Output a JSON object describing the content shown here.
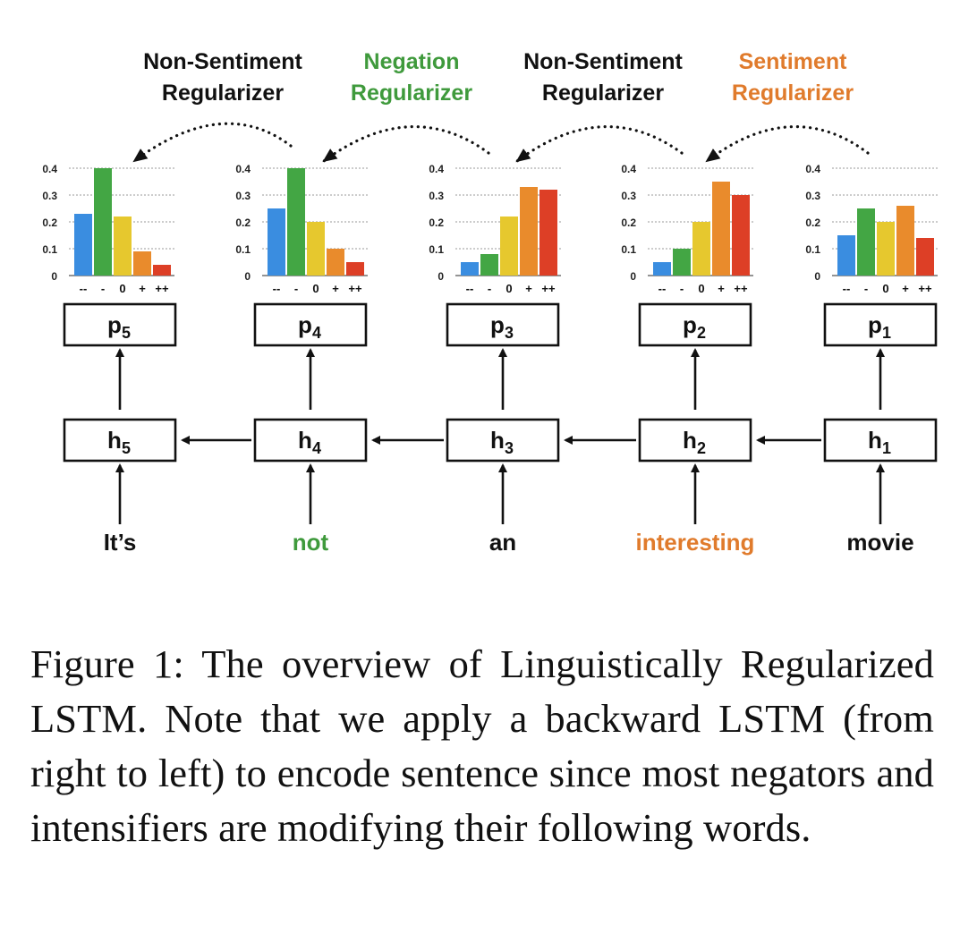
{
  "regularizers": [
    {
      "line1": "Non-Sentiment",
      "line2": "Regularizer",
      "color": "#111111"
    },
    {
      "line1": "Negation",
      "line2": "Regularizer",
      "color": "#3f9a3c"
    },
    {
      "line1": "Non-Sentiment",
      "line2": "Regularizer",
      "color": "#111111"
    },
    {
      "line1": "Sentiment",
      "line2": "Regularizer",
      "color": "#e07b2c"
    }
  ],
  "distributions": {
    "y_ticks": [
      "0.4",
      "0.3",
      "0.2",
      "0.1",
      "0"
    ],
    "y_values": [
      0.4,
      0.3,
      0.2,
      0.1,
      0
    ],
    "categories": [
      "--",
      "-",
      "0",
      "+",
      "++"
    ],
    "bar_colors": [
      "#3a8de0",
      "#43a644",
      "#e6c82e",
      "#e98b2c",
      "#dd3f26"
    ],
    "charts": [
      {
        "values": [
          0.23,
          0.4,
          0.22,
          0.09,
          0.04
        ]
      },
      {
        "values": [
          0.25,
          0.4,
          0.2,
          0.1,
          0.05
        ]
      },
      {
        "values": [
          0.05,
          0.08,
          0.22,
          0.33,
          0.32
        ]
      },
      {
        "values": [
          0.05,
          0.1,
          0.2,
          0.35,
          0.3
        ]
      },
      {
        "values": [
          0.15,
          0.25,
          0.2,
          0.26,
          0.14
        ]
      }
    ]
  },
  "prob_nodes": [
    {
      "base": "p",
      "sub": "5"
    },
    {
      "base": "p",
      "sub": "4"
    },
    {
      "base": "p",
      "sub": "3"
    },
    {
      "base": "p",
      "sub": "2"
    },
    {
      "base": "p",
      "sub": "1"
    }
  ],
  "hidden_nodes": [
    {
      "base": "h",
      "sub": "5"
    },
    {
      "base": "h",
      "sub": "4"
    },
    {
      "base": "h",
      "sub": "3"
    },
    {
      "base": "h",
      "sub": "2"
    },
    {
      "base": "h",
      "sub": "1"
    }
  ],
  "words": [
    {
      "text": "It’s",
      "color": "#111111"
    },
    {
      "text": "not",
      "color": "#3f9a3c"
    },
    {
      "text": "an",
      "color": "#111111"
    },
    {
      "text": "interesting",
      "color": "#e07b2c"
    },
    {
      "text": "movie",
      "color": "#111111"
    }
  ],
  "caption": "Figure 1: The overview of Linguistically Regularized LSTM. Note that we apply a backward LSTM (from right to left) to encode sentence since most negators and intensifiers are modifying their following words."
}
